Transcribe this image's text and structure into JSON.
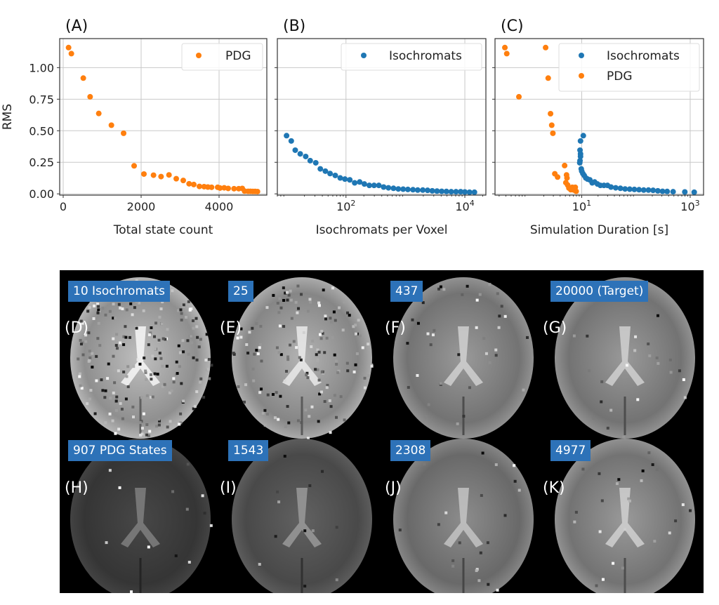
{
  "colors": {
    "isochromats": "#1f77b4",
    "pdg": "#ff7f0e",
    "caption_bg": "#2d72b8"
  },
  "chart_data": [
    {
      "panel": "(A)",
      "type": "scatter",
      "xlabel": "Total state count",
      "ylabel": "RMS",
      "xscale": "linear",
      "xlim": [
        -90,
        5225
      ],
      "ylim": [
        -0.01,
        1.23
      ],
      "xticks": [
        0,
        2000,
        4000
      ],
      "xtick_labels": [
        "0",
        "2000",
        "4000"
      ],
      "yticks": [
        0,
        0.25,
        0.5,
        0.75,
        1.0
      ],
      "ytick_labels": [
        "0.00",
        "0.25",
        "0.50",
        "0.75",
        "1.00"
      ],
      "grid": true,
      "legend_position": "top-right",
      "series": [
        {
          "name": "PDG",
          "color": "#ff7f0e",
          "x": [
            138,
            210,
            516,
            691,
            913,
            1237,
            1550,
            1820,
            2072,
            2318,
            2511,
            2715,
            2901,
            3081,
            3231,
            3351,
            3495,
            3616,
            3712,
            3808,
            3964,
            4024,
            4132,
            4234,
            4384,
            4505,
            4595,
            4655,
            4745,
            4805,
            4865,
            4925,
            4985
          ],
          "y": [
            1.159,
            1.111,
            0.917,
            0.769,
            0.637,
            0.544,
            0.48,
            0.222,
            0.157,
            0.148,
            0.137,
            0.15,
            0.12,
            0.106,
            0.08,
            0.074,
            0.059,
            0.057,
            0.054,
            0.052,
            0.052,
            0.046,
            0.048,
            0.043,
            0.041,
            0.041,
            0.043,
            0.022,
            0.02,
            0.02,
            0.019,
            0.019,
            0.018
          ]
        }
      ]
    },
    {
      "panel": "(B)",
      "type": "scatter",
      "xlabel": "Isochromats per Voxel",
      "xscale": "log",
      "xlim": [
        7,
        22600
      ],
      "ylim": [
        -0.01,
        1.23
      ],
      "xticks": [
        100,
        10000
      ],
      "xtick_labels": [
        "10^2",
        "10^4"
      ],
      "yticks": [
        0,
        0.25,
        0.5,
        0.75,
        1.0
      ],
      "grid": true,
      "legend_position": "top-right",
      "series": [
        {
          "name": "Isochromats",
          "color": "#1f77b4",
          "x": [
            10,
            12,
            14,
            17,
            21,
            25,
            31,
            37,
            45,
            54,
            66,
            80,
            96,
            116,
            140,
            170,
            204,
            247,
            297,
            357,
            430,
            518,
            630,
            760,
            916,
            1100,
            1340,
            1610,
            1960,
            2360,
            2830,
            3400,
            4080,
            4900,
            5900,
            7100,
            8500,
            10000,
            12000,
            14500
          ],
          "y": [
            0.461,
            0.419,
            0.346,
            0.317,
            0.296,
            0.263,
            0.246,
            0.198,
            0.18,
            0.161,
            0.146,
            0.126,
            0.117,
            0.111,
            0.087,
            0.094,
            0.078,
            0.067,
            0.067,
            0.067,
            0.054,
            0.048,
            0.044,
            0.039,
            0.037,
            0.035,
            0.033,
            0.03,
            0.03,
            0.028,
            0.024,
            0.022,
            0.02,
            0.019,
            0.017,
            0.017,
            0.017,
            0.015,
            0.013,
            0.013
          ]
        }
      ]
    },
    {
      "panel": "(C)",
      "type": "scatter",
      "xlabel": "Simulation Duration [s]",
      "xscale": "log",
      "xlim": [
        0.252,
        1763
      ],
      "ylim": [
        -0.01,
        1.23
      ],
      "xticks": [
        10,
        1000
      ],
      "xtick_labels": [
        "10^1",
        "10^3"
      ],
      "yticks": [
        0,
        0.25,
        0.5,
        0.75,
        1.0
      ],
      "grid": true,
      "legend_position": "top-right",
      "series": [
        {
          "name": "Isochromats",
          "color": "#1f77b4",
          "x": [
            10.7,
            9.5,
            9.3,
            9.5,
            9.5,
            9.3,
            9.2,
            9.8,
            10,
            10.5,
            11.1,
            11.9,
            12.8,
            14.1,
            15.6,
            17.3,
            19.5,
            22.1,
            25.7,
            29.9,
            34.6,
            42.3,
            51.7,
            63,
            76.7,
            93.5,
            114,
            139,
            170,
            207,
            253,
            309,
            376,
            484,
            796,
            1186
          ],
          "y": [
            0.461,
            0.419,
            0.346,
            0.317,
            0.296,
            0.263,
            0.246,
            0.198,
            0.18,
            0.161,
            0.146,
            0.126,
            0.117,
            0.111,
            0.087,
            0.094,
            0.078,
            0.067,
            0.067,
            0.067,
            0.054,
            0.048,
            0.044,
            0.039,
            0.037,
            0.035,
            0.033,
            0.03,
            0.03,
            0.028,
            0.024,
            0.02,
            0.019,
            0.017,
            0.015,
            0.013
          ]
        },
        {
          "name": "PDG",
          "color": "#ff7f0e",
          "x": [
            0.383,
            0.415,
            0.695,
            2.16,
            2.41,
            2.66,
            2.8,
            2.94,
            3.19,
            3.59,
            4.84,
            5.25,
            5.35,
            5.1,
            5.5,
            5.8,
            6.3,
            6.7,
            7.2,
            7.6,
            7.9
          ],
          "y": [
            1.159,
            1.111,
            0.769,
            1.159,
            0.917,
            0.635,
            0.544,
            0.48,
            0.159,
            0.133,
            0.224,
            0.15,
            0.126,
            0.089,
            0.07,
            0.046,
            0.033,
            0.052,
            0.03,
            0.052,
            0.02
          ]
        }
      ]
    }
  ],
  "images": {
    "top_row": [
      {
        "panel": "(D)",
        "caption": "10 Isochromats",
        "brightness": 0.75,
        "noise": 0.9
      },
      {
        "panel": "(E)",
        "caption": "25",
        "brightness": 0.7,
        "noise": 0.6
      },
      {
        "panel": "(F)",
        "caption": "437",
        "brightness": 0.6,
        "noise": 0.15
      },
      {
        "panel": "(G)",
        "caption": "20000 (Target)",
        "brightness": 0.6,
        "noise": 0.1
      }
    ],
    "bottom_row": [
      {
        "panel": "(H)",
        "caption": "907 PDG States",
        "brightness": 0.28,
        "noise": 0.05
      },
      {
        "panel": "(I)",
        "caption": "1543",
        "brightness": 0.38,
        "noise": 0.05
      },
      {
        "panel": "(J)",
        "caption": "2308",
        "brightness": 0.55,
        "noise": 0.08
      },
      {
        "panel": "(K)",
        "caption": "4977",
        "brightness": 0.6,
        "noise": 0.1
      }
    ]
  }
}
